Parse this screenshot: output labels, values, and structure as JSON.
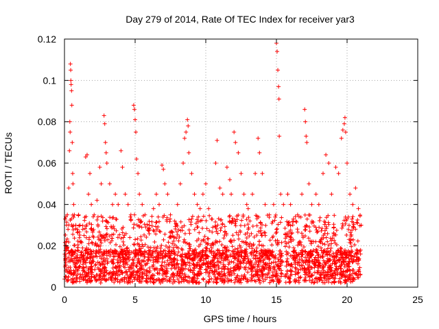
{
  "chart_data": {
    "type": "scatter",
    "title": "Day 279 of 2014, Rate Of TEC Index for receiver yar3",
    "xlabel": "GPS time / hours",
    "ylabel": "ROTI / TECUs",
    "xlim": [
      0,
      25
    ],
    "ylim": [
      0,
      0.12
    ],
    "xticks": [
      0,
      5,
      10,
      15,
      20,
      25
    ],
    "xtick_labels": [
      "0",
      "5",
      "10",
      "15",
      "20",
      "25"
    ],
    "yticks": [
      0,
      0.02,
      0.04,
      0.06,
      0.08,
      0.1,
      0.12
    ],
    "ytick_labels": [
      "0",
      "0.02",
      "0.04",
      "0.06",
      "0.08",
      "0.1",
      "0.12"
    ],
    "grid": true,
    "marker": "plus",
    "color": "#ff0000",
    "series": [
      {
        "name": "ROTI",
        "points": [
          [
            0.05,
            0.033
          ],
          [
            0.1,
            0.034
          ],
          [
            0.12,
            0.02
          ],
          [
            0.15,
            0.03
          ],
          [
            0.2,
            0.035
          ],
          [
            0.25,
            0.028
          ],
          [
            0.3,
            0.048
          ],
          [
            0.35,
            0.066
          ],
          [
            0.38,
            0.08
          ],
          [
            0.4,
            0.075
          ],
          [
            0.42,
            0.108
          ],
          [
            0.44,
            0.105
          ],
          [
            0.45,
            0.1
          ],
          [
            0.47,
            0.098
          ],
          [
            0.5,
            0.095
          ],
          [
            0.52,
            0.088
          ],
          [
            0.55,
            0.07
          ],
          [
            0.58,
            0.055
          ],
          [
            0.6,
            0.05
          ],
          [
            0.65,
            0.04
          ],
          [
            0.7,
            0.035
          ],
          [
            0.8,
            0.03
          ],
          [
            0.9,
            0.028
          ],
          [
            1.0,
            0.035
          ],
          [
            1.1,
            0.03
          ],
          [
            1.3,
            0.028
          ],
          [
            1.5,
            0.063
          ],
          [
            1.6,
            0.064
          ],
          [
            1.7,
            0.045
          ],
          [
            1.8,
            0.055
          ],
          [
            1.9,
            0.04
          ],
          [
            2.1,
            0.035
          ],
          [
            2.3,
            0.042
          ],
          [
            2.5,
            0.058
          ],
          [
            2.6,
            0.05
          ],
          [
            2.8,
            0.083
          ],
          [
            2.85,
            0.079
          ],
          [
            2.9,
            0.07
          ],
          [
            2.95,
            0.065
          ],
          [
            3.0,
            0.06
          ],
          [
            3.2,
            0.05
          ],
          [
            3.4,
            0.04
          ],
          [
            3.6,
            0.045
          ],
          [
            3.8,
            0.04
          ],
          [
            4.0,
            0.066
          ],
          [
            4.1,
            0.058
          ],
          [
            4.3,
            0.045
          ],
          [
            4.5,
            0.04
          ],
          [
            4.7,
            0.035
          ],
          [
            4.9,
            0.088
          ],
          [
            4.95,
            0.086
          ],
          [
            5.0,
            0.081
          ],
          [
            5.05,
            0.075
          ],
          [
            5.1,
            0.062
          ],
          [
            5.2,
            0.055
          ],
          [
            5.3,
            0.045
          ],
          [
            5.5,
            0.04
          ],
          [
            5.7,
            0.035
          ],
          [
            6.0,
            0.03
          ],
          [
            6.3,
            0.038
          ],
          [
            6.5,
            0.045
          ],
          [
            6.7,
            0.04
          ],
          [
            6.9,
            0.059
          ],
          [
            7.0,
            0.057
          ],
          [
            7.1,
            0.05
          ],
          [
            7.3,
            0.045
          ],
          [
            7.5,
            0.035
          ],
          [
            7.8,
            0.032
          ],
          [
            8.0,
            0.04
          ],
          [
            8.2,
            0.05
          ],
          [
            8.4,
            0.06
          ],
          [
            8.5,
            0.072
          ],
          [
            8.6,
            0.075
          ],
          [
            8.7,
            0.081
          ],
          [
            8.75,
            0.078
          ],
          [
            8.8,
            0.065
          ],
          [
            9.0,
            0.055
          ],
          [
            9.2,
            0.045
          ],
          [
            9.4,
            0.04
          ],
          [
            9.6,
            0.038
          ],
          [
            9.8,
            0.045
          ],
          [
            10.0,
            0.05
          ],
          [
            10.2,
            0.038
          ],
          [
            10.4,
            0.033
          ],
          [
            10.7,
            0.06
          ],
          [
            10.8,
            0.071
          ],
          [
            11.0,
            0.048
          ],
          [
            11.2,
            0.045
          ],
          [
            11.5,
            0.058
          ],
          [
            11.7,
            0.052
          ],
          [
            11.8,
            0.045
          ],
          [
            12.0,
            0.075
          ],
          [
            12.1,
            0.07
          ],
          [
            12.3,
            0.065
          ],
          [
            12.5,
            0.055
          ],
          [
            12.7,
            0.045
          ],
          [
            12.9,
            0.04
          ],
          [
            13.0,
            0.038
          ],
          [
            13.3,
            0.045
          ],
          [
            13.5,
            0.055
          ],
          [
            13.7,
            0.072
          ],
          [
            13.8,
            0.065
          ],
          [
            14.0,
            0.055
          ],
          [
            14.2,
            0.04
          ],
          [
            14.5,
            0.035
          ],
          [
            14.8,
            0.04
          ],
          [
            15.0,
            0.118
          ],
          [
            15.05,
            0.114
          ],
          [
            15.1,
            0.105
          ],
          [
            15.15,
            0.097
          ],
          [
            15.18,
            0.091
          ],
          [
            15.2,
            0.073
          ],
          [
            15.3,
            0.045
          ],
          [
            15.5,
            0.04
          ],
          [
            15.8,
            0.045
          ],
          [
            16.0,
            0.04
          ],
          [
            16.2,
            0.033
          ],
          [
            16.5,
            0.035
          ],
          [
            16.8,
            0.045
          ],
          [
            17.0,
            0.086
          ],
          [
            17.05,
            0.08
          ],
          [
            17.1,
            0.073
          ],
          [
            17.15,
            0.07
          ],
          [
            17.3,
            0.05
          ],
          [
            17.5,
            0.04
          ],
          [
            17.8,
            0.045
          ],
          [
            18.0,
            0.04
          ],
          [
            18.3,
            0.055
          ],
          [
            18.5,
            0.064
          ],
          [
            18.7,
            0.06
          ],
          [
            18.9,
            0.045
          ],
          [
            19.2,
            0.058
          ],
          [
            19.4,
            0.055
          ],
          [
            19.6,
            0.072
          ],
          [
            19.7,
            0.076
          ],
          [
            19.8,
            0.079
          ],
          [
            19.85,
            0.082
          ],
          [
            19.9,
            0.075
          ],
          [
            20.0,
            0.06
          ],
          [
            20.2,
            0.045
          ],
          [
            20.4,
            0.04
          ],
          [
            20.6,
            0.048
          ],
          [
            20.8,
            0.038
          ],
          [
            21.0,
            0.03
          ]
        ]
      }
    ],
    "density_band": {
      "x_range": [
        0,
        21
      ],
      "gap_x_range": [
        15.4,
        15.6
      ],
      "low_y_range": [
        0.002,
        0.018
      ],
      "high_y_range": [
        0.015,
        0.035
      ]
    }
  }
}
